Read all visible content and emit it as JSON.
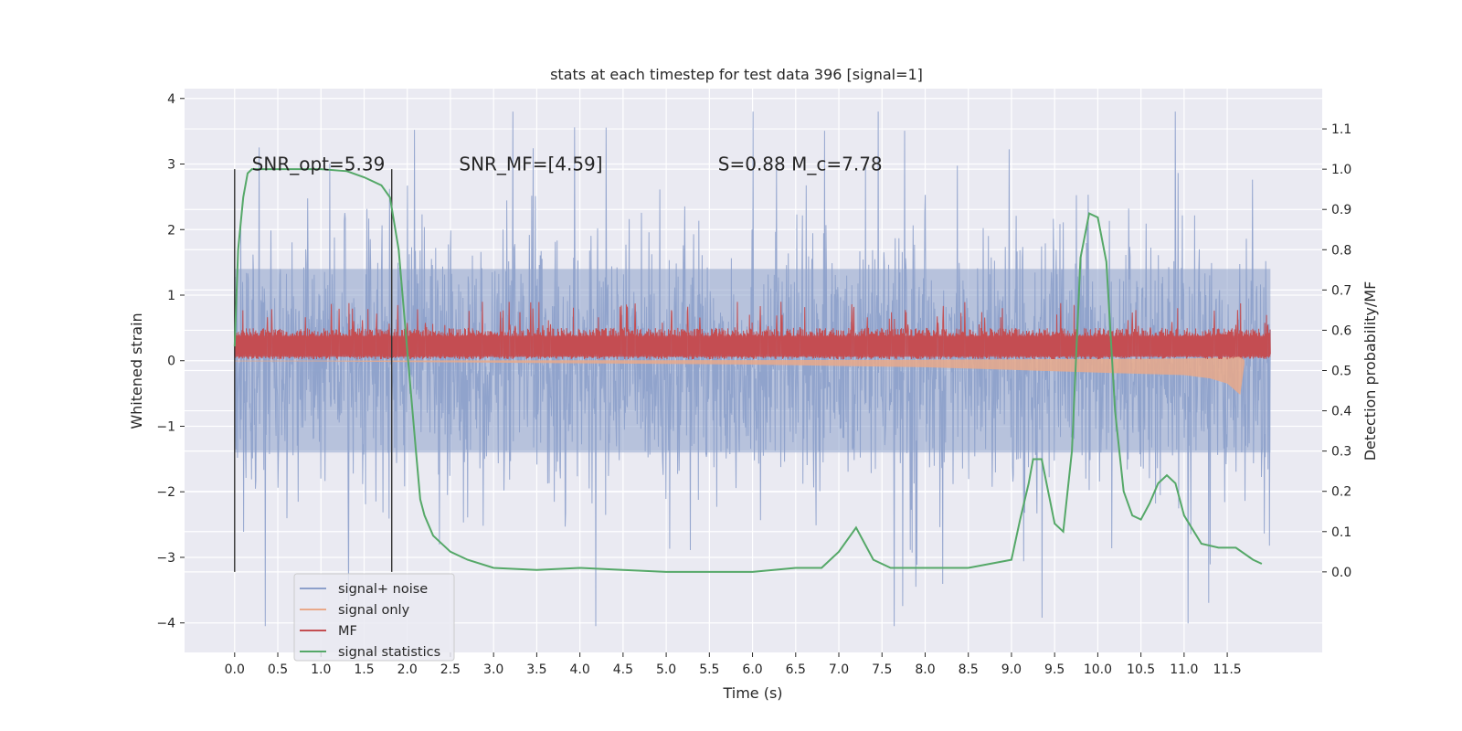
{
  "chart_data": {
    "type": "line",
    "title": "stats at each timestep for test data 396 [signal=1]",
    "xlabel": "Time (s)",
    "ylabel": "Whitened strain",
    "y2label": "Detection probability/MF",
    "xlim": [
      -0.58,
      12.6
    ],
    "ylim": [
      -4.45,
      4.15
    ],
    "y2lim": [
      -0.2,
      1.2
    ],
    "x_ticks": [
      0.0,
      0.5,
      1.0,
      1.5,
      2.0,
      2.5,
      3.0,
      3.5,
      4.0,
      4.5,
      5.0,
      5.5,
      6.0,
      6.5,
      7.0,
      7.5,
      8.0,
      8.5,
      9.0,
      9.5,
      10.0,
      10.5,
      11.0,
      11.5
    ],
    "x_tick_labels": [
      "0.0",
      "0.5",
      "1.0",
      "1.5",
      "2.0",
      "2.5",
      "3.0",
      "3.5",
      "4.0",
      "4.5",
      "5.0",
      "5.5",
      "6.0",
      "6.5",
      "7.0",
      "7.5",
      "8.0",
      "8.5",
      "9.0",
      "9.5",
      "10.0",
      "10.5",
      "11.0",
      "11.5"
    ],
    "y_ticks": [
      4,
      3,
      2,
      1,
      0,
      -1,
      -2,
      -3,
      -4
    ],
    "y_tick_labels": [
      "4",
      "3",
      "2",
      "1",
      "0",
      "−1",
      "−2",
      "−3",
      "−4"
    ],
    "y2_ticks": [
      1.1,
      1.0,
      0.9,
      0.8,
      0.7,
      0.6,
      0.5,
      0.4,
      0.3,
      0.2,
      0.1,
      0.0
    ],
    "y2_tick_labels": [
      "1.1",
      "1.0",
      "0.9",
      "0.8",
      "0.7",
      "0.6",
      "0.5",
      "0.4",
      "0.3",
      "0.2",
      "0.1",
      "0.0"
    ],
    "grid": true,
    "legend_position": "lower-left",
    "legend": [
      {
        "label": "signal+ noise",
        "color": "#8da0cb"
      },
      {
        "label": "signal only",
        "color": "#e9a98a"
      },
      {
        "label": "MF",
        "color": "#c44e52"
      },
      {
        "label": "signal statistics",
        "color": "#55a868"
      }
    ],
    "annotations": [
      {
        "text": "SNR_opt=5.39",
        "x": 0.2,
        "y": 2.9
      },
      {
        "text": "SNR_MF=[4.59]",
        "x": 2.6,
        "y": 2.9
      },
      {
        "text": "S=0.88   M_c=7.78",
        "x": 5.6,
        "y": 2.9
      }
    ],
    "vertical_lines_x": [
      0.0,
      1.82
    ],
    "noise_envelope": {
      "x": [
        0,
        12
      ],
      "typical_range": [
        -1.4,
        1.4
      ],
      "peak_max": 3.8,
      "peak_min": -4.05
    },
    "mf_band": {
      "x": [
        0,
        12
      ],
      "typical_range": [
        0.0,
        0.5
      ],
      "peak_max": 0.9
    },
    "signal_only": {
      "x": [
        0.0,
        1.0,
        2.0,
        3.0,
        4.0,
        5.0,
        6.0,
        7.0,
        8.0,
        9.0,
        10.0,
        10.5,
        11.0,
        11.3,
        11.5,
        11.65,
        11.7
      ],
      "envelope": [
        0.01,
        0.01,
        0.02,
        0.03,
        0.04,
        0.05,
        0.06,
        0.08,
        0.1,
        0.14,
        0.18,
        0.2,
        0.22,
        0.27,
        0.35,
        0.52,
        0.05
      ]
    },
    "signal_statistics": {
      "x": [
        0.0,
        0.04,
        0.1,
        0.15,
        0.2,
        0.3,
        0.5,
        0.8,
        1.0,
        1.3,
        1.5,
        1.7,
        1.8,
        1.9,
        2.0,
        2.1,
        2.15,
        2.2,
        2.3,
        2.5,
        2.7,
        3.0,
        3.5,
        4.0,
        4.5,
        5.0,
        5.5,
        6.0,
        6.5,
        6.8,
        7.0,
        7.2,
        7.4,
        7.6,
        8.0,
        8.5,
        9.0,
        9.1,
        9.2,
        9.25,
        9.35,
        9.5,
        9.6,
        9.7,
        9.8,
        9.9,
        10.0,
        10.1,
        10.2,
        10.3,
        10.4,
        10.5,
        10.6,
        10.7,
        10.8,
        10.9,
        11.0,
        11.2,
        11.4,
        11.6,
        11.8,
        11.9
      ],
      "y": [
        0.56,
        0.8,
        0.93,
        0.99,
        1.0,
        1.0,
        1.0,
        1.0,
        1.0,
        0.995,
        0.98,
        0.96,
        0.93,
        0.8,
        0.55,
        0.3,
        0.18,
        0.14,
        0.09,
        0.05,
        0.03,
        0.01,
        0.005,
        0.01,
        0.005,
        0.0,
        0.0,
        0.0,
        0.01,
        0.01,
        0.05,
        0.11,
        0.03,
        0.01,
        0.01,
        0.01,
        0.03,
        0.13,
        0.22,
        0.28,
        0.28,
        0.12,
        0.1,
        0.3,
        0.78,
        0.89,
        0.88,
        0.77,
        0.4,
        0.2,
        0.14,
        0.13,
        0.17,
        0.22,
        0.24,
        0.22,
        0.14,
        0.07,
        0.06,
        0.06,
        0.03,
        0.02
      ]
    }
  }
}
